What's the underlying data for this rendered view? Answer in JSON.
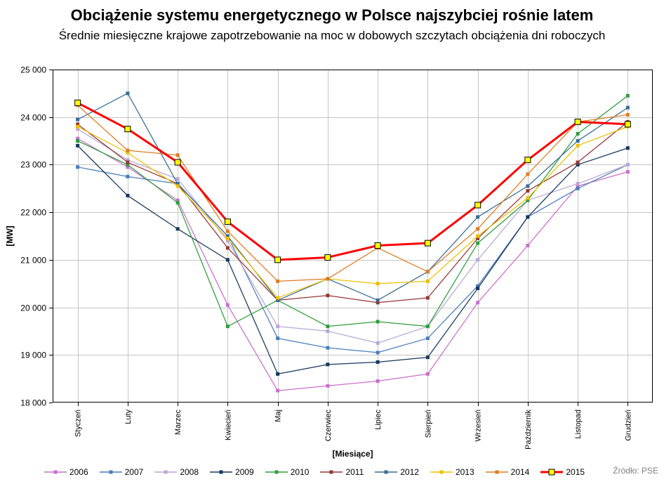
{
  "chart_data": {
    "type": "line",
    "title": "Obciążenie systemu energetycznego w Polsce najszybciej rośnie latem",
    "subtitle": "Średnie miesięczne krajowe zapotrzebowanie na moc w dobowych szczytach obciążenia dni roboczych",
    "xlabel": "[Miesiące]",
    "ylabel": "[MW]",
    "ylim": [
      18000,
      25000
    ],
    "ytick_step": 1000,
    "grid": true,
    "legend_position": "bottom",
    "source": "Źródło: PSE",
    "categories": [
      "Styczeń",
      "Luty",
      "Marzec",
      "Kwiecień",
      "Maj",
      "Czerwiec",
      "Lipiec",
      "Sierpień",
      "Wrzesień",
      "Październik",
      "Listopad",
      "Grudzień"
    ],
    "series": [
      {
        "name": "2006",
        "color": "#CC6ECC",
        "line_width": 1.25,
        "marker": "square",
        "values": [
          23550,
          22950,
          22250,
          20050,
          18250,
          18350,
          18450,
          18600,
          20100,
          21300,
          22550,
          22850
        ]
      },
      {
        "name": "2007",
        "color": "#4A7EBB",
        "line_width": 1.25,
        "marker": "square",
        "values": [
          22950,
          22750,
          22600,
          21500,
          19350,
          19150,
          19050,
          19350,
          20450,
          21900,
          22500,
          23000
        ]
      },
      {
        "name": "2008",
        "color": "#B9A7D8",
        "line_width": 1.25,
        "marker": "square",
        "values": [
          23750,
          23100,
          22700,
          21400,
          19600,
          19500,
          19250,
          19600,
          21000,
          22250,
          22600,
          23000
        ]
      },
      {
        "name": "2009",
        "color": "#17375E",
        "line_width": 1.25,
        "marker": "square",
        "values": [
          23400,
          22350,
          21650,
          21000,
          18600,
          18800,
          18850,
          18950,
          20400,
          21900,
          23000,
          23350
        ]
      },
      {
        "name": "2010",
        "color": "#2E9E3C",
        "line_width": 1.25,
        "marker": "square",
        "values": [
          23500,
          23000,
          22200,
          19600,
          20150,
          19600,
          19700,
          19600,
          21350,
          22250,
          23650,
          24450
        ]
      },
      {
        "name": "2011",
        "color": "#953735",
        "line_width": 1.25,
        "marker": "square",
        "values": [
          23850,
          23050,
          22600,
          21250,
          20150,
          20250,
          20100,
          20200,
          21450,
          22450,
          23050,
          23900
        ]
      },
      {
        "name": "2012",
        "color": "#376D93",
        "line_width": 1.25,
        "marker": "square",
        "values": [
          23950,
          24500,
          22600,
          21500,
          20150,
          20600,
          20150,
          20750,
          21900,
          22550,
          23500,
          24200
        ]
      },
      {
        "name": "2013",
        "color": "#EDC001",
        "line_width": 1.25,
        "marker": "square",
        "values": [
          23800,
          23250,
          22550,
          21450,
          20200,
          20600,
          20500,
          20550,
          21500,
          22300,
          23400,
          23800
        ]
      },
      {
        "name": "2014",
        "color": "#E07C20",
        "line_width": 1.25,
        "marker": "square",
        "values": [
          24250,
          23300,
          23200,
          21600,
          20550,
          20600,
          21250,
          20750,
          21650,
          22800,
          23900,
          24050
        ]
      },
      {
        "name": "2015",
        "color": "#FF0000",
        "line_width": 3,
        "marker": "square-yellow",
        "values": [
          24300,
          23750,
          23050,
          21800,
          21000,
          21050,
          21300,
          21350,
          22150,
          23100,
          23900,
          23850
        ]
      }
    ]
  }
}
